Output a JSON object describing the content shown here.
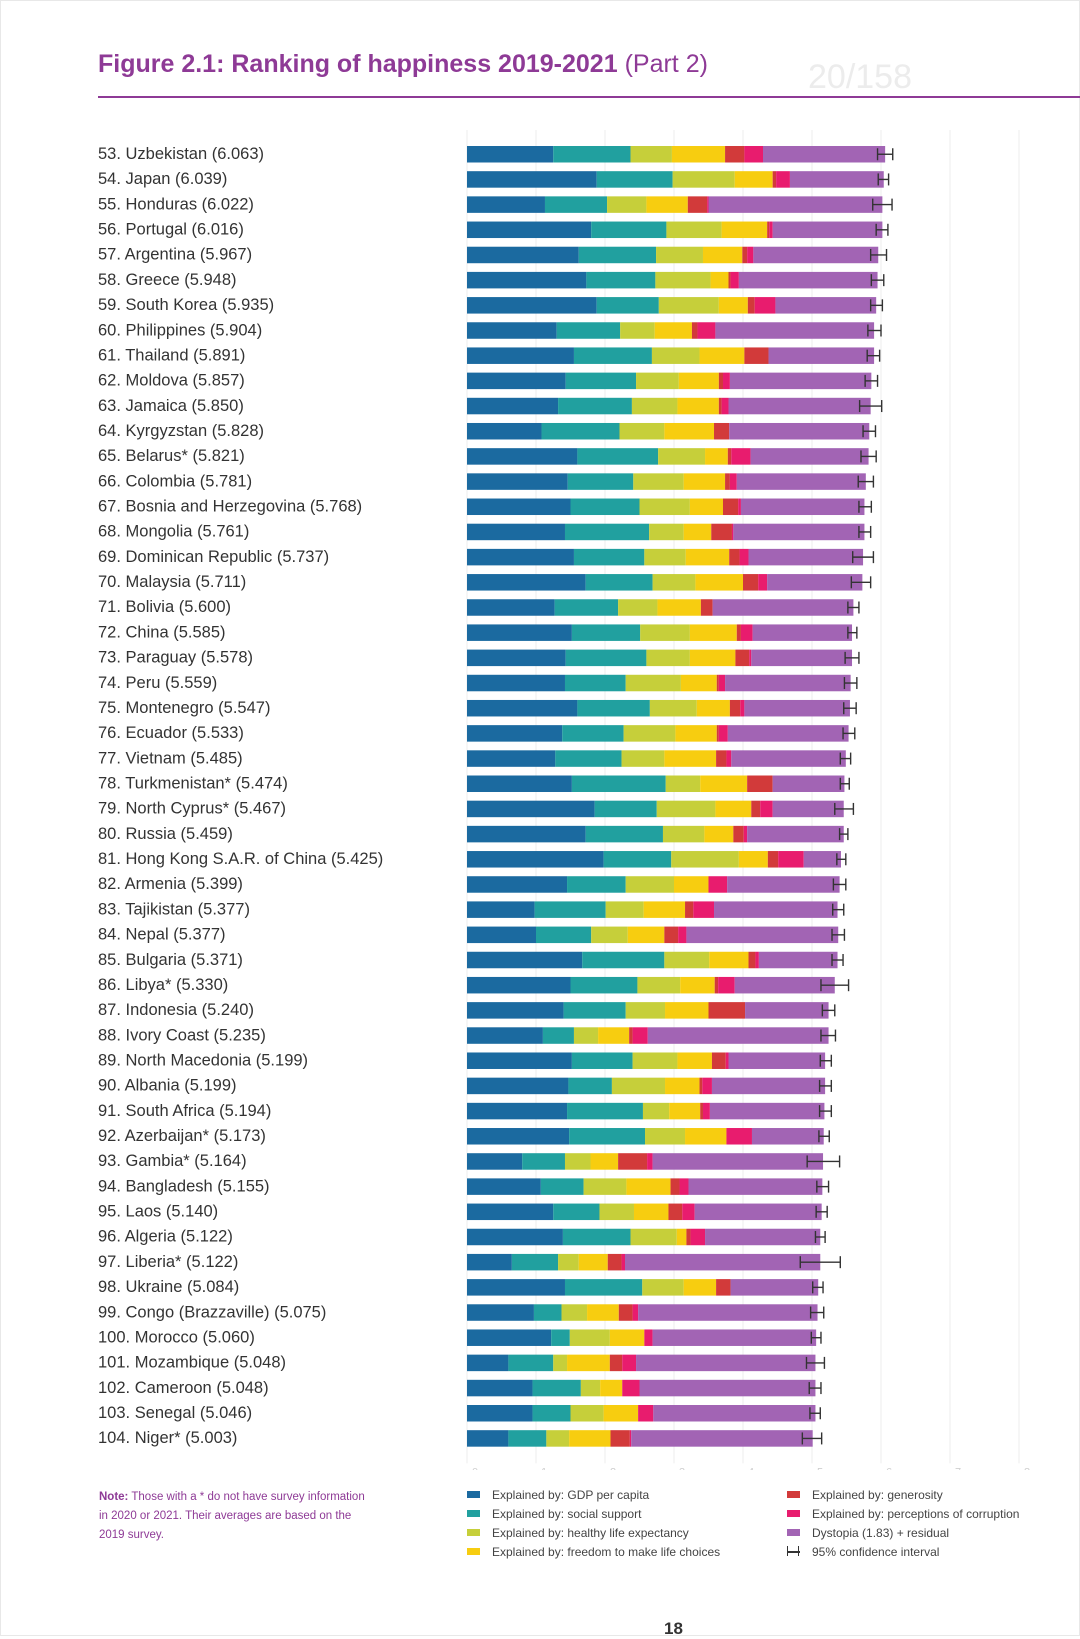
{
  "title_main": "Figure 2.1: Ranking of happiness 2019-2021",
  "title_part": "(Part 2)",
  "watermark": "20/158",
  "note_label": "Note:",
  "note_text": "Those with a * do not have survey information in 2020 or 2021. Their averages are based on the 2019 survey.",
  "page_number": "18",
  "colors": {
    "gdp": "#1b6aa0",
    "social": "#21a09f",
    "health": "#c6cf3a",
    "freedom": "#f7cd10",
    "generosity": "#d23a3a",
    "corruption": "#e81c6e",
    "dystopia": "#a264b4",
    "ci": "#333333",
    "grid": "#ececec"
  },
  "legend": [
    {
      "key": "gdp",
      "label": "Explained by: GDP per capita"
    },
    {
      "key": "social",
      "label": "Explained by: social support"
    },
    {
      "key": "health",
      "label": "Explained by: healthy life expectancy"
    },
    {
      "key": "freedom",
      "label": "Explained by: freedom to make life choices"
    },
    {
      "key": "generosity",
      "label": "Explained by: generosity"
    },
    {
      "key": "corruption",
      "label": "Explained by: perceptions of corruption"
    },
    {
      "key": "dystopia",
      "label": "Dystopia (1.83) + residual"
    },
    {
      "key": "ci",
      "label": "95% confidence interval"
    }
  ],
  "chart_data": {
    "type": "bar",
    "orientation": "horizontal",
    "stacked": true,
    "xlim": [
      0,
      8
    ],
    "xticks": [
      "0",
      "1",
      "2",
      "3",
      "4",
      "5",
      "6",
      "7",
      "8"
    ],
    "grid": true,
    "legend_position": "bottom",
    "segment_order": [
      "gdp",
      "social",
      "health",
      "freedom",
      "generosity",
      "corruption",
      "dystopia"
    ],
    "rows": [
      {
        "label": "53.  Uzbekistan (6.063)",
        "score": 6.063,
        "segments": [
          1.25,
          1.12,
          0.6,
          0.77,
          0.28,
          0.27,
          1.77
        ],
        "ci": [
          5.95,
          6.17
        ]
      },
      {
        "label": "54.  Japan (6.039)",
        "score": 6.039,
        "segments": [
          1.88,
          1.1,
          0.9,
          0.55,
          0.05,
          0.2,
          1.36
        ],
        "ci": [
          5.96,
          6.11
        ]
      },
      {
        "label": "55.  Honduras (6.022)",
        "score": 6.022,
        "segments": [
          1.13,
          0.9,
          0.57,
          0.6,
          0.28,
          0.02,
          2.52
        ],
        "ci": [
          5.88,
          6.16
        ]
      },
      {
        "label": "56.  Portugal (6.016)",
        "score": 6.016,
        "segments": [
          1.8,
          1.09,
          0.8,
          0.66,
          0.03,
          0.05,
          1.59
        ],
        "ci": [
          5.93,
          6.1
        ]
      },
      {
        "label": "57.  Argentina (5.967)",
        "score": 5.967,
        "segments": [
          1.62,
          1.12,
          0.68,
          0.57,
          0.07,
          0.09,
          1.81
        ],
        "ci": [
          5.85,
          6.08
        ]
      },
      {
        "label": "58.  Greece (5.948)",
        "score": 5.948,
        "segments": [
          1.73,
          1.0,
          0.8,
          0.26,
          0.03,
          0.12,
          2.01
        ],
        "ci": [
          5.86,
          6.04
        ]
      },
      {
        "label": "59.  South Korea (5.935)",
        "score": 5.935,
        "segments": [
          1.88,
          0.9,
          0.87,
          0.42,
          0.1,
          0.3,
          1.46
        ],
        "ci": [
          5.85,
          6.02
        ]
      },
      {
        "label": "60.  Philippines (5.904)",
        "score": 5.904,
        "segments": [
          1.3,
          0.92,
          0.5,
          0.54,
          0.08,
          0.26,
          2.3
        ],
        "ci": [
          5.81,
          6.0
        ]
      },
      {
        "label": "61.  Thailand (5.891)",
        "score": 5.891,
        "segments": [
          1.55,
          1.13,
          0.69,
          0.65,
          0.35,
          0.0,
          1.53
        ],
        "ci": [
          5.8,
          5.98
        ]
      },
      {
        "label": "62.  Moldova (5.857)",
        "score": 5.857,
        "segments": [
          1.43,
          1.02,
          0.62,
          0.58,
          0.06,
          0.1,
          2.05
        ],
        "ci": [
          5.77,
          5.95
        ]
      },
      {
        "label": "63.  Jamaica (5.850)",
        "score": 5.85,
        "segments": [
          1.32,
          1.07,
          0.66,
          0.6,
          0.04,
          0.1,
          2.06
        ],
        "ci": [
          5.69,
          6.01
        ]
      },
      {
        "label": "64.  Kyrgyzstan (5.828)",
        "score": 5.828,
        "segments": [
          1.08,
          1.13,
          0.65,
          0.72,
          0.22,
          0.0,
          2.03
        ],
        "ci": [
          5.74,
          5.92
        ]
      },
      {
        "label": "65.  Belarus* (5.821)",
        "score": 5.821,
        "segments": [
          1.6,
          1.17,
          0.68,
          0.33,
          0.05,
          0.28,
          1.71
        ],
        "ci": [
          5.71,
          5.93
        ]
      },
      {
        "label": "66.  Colombia (5.781)",
        "score": 5.781,
        "segments": [
          1.46,
          0.95,
          0.73,
          0.6,
          0.07,
          0.1,
          1.87
        ],
        "ci": [
          5.67,
          5.89
        ]
      },
      {
        "label": "67.  Bosnia and Herzegovina (5.768)",
        "score": 5.768,
        "segments": [
          1.5,
          1.0,
          0.73,
          0.48,
          0.22,
          0.04,
          1.79
        ],
        "ci": [
          5.68,
          5.86
        ]
      },
      {
        "label": "68.  Mongolia (5.761)",
        "score": 5.761,
        "segments": [
          1.42,
          1.22,
          0.5,
          0.4,
          0.3,
          0.02,
          1.9
        ],
        "ci": [
          5.68,
          5.85
        ]
      },
      {
        "label": "69.  Dominican Republic (5.737)",
        "score": 5.737,
        "segments": [
          1.55,
          1.02,
          0.6,
          0.63,
          0.15,
          0.13,
          1.66
        ],
        "ci": [
          5.59,
          5.89
        ]
      },
      {
        "label": "70.  Malaysia (5.711)",
        "score": 5.711,
        "segments": [
          1.72,
          0.97,
          0.62,
          0.69,
          0.22,
          0.13,
          1.38
        ],
        "ci": [
          5.57,
          5.85
        ]
      },
      {
        "label": "71.  Bolivia (5.600)",
        "score": 5.6,
        "segments": [
          1.27,
          0.92,
          0.57,
          0.63,
          0.17,
          0.0,
          2.04
        ],
        "ci": [
          5.52,
          5.68
        ]
      },
      {
        "label": "72.  China (5.585)",
        "score": 5.585,
        "segments": [
          1.52,
          0.99,
          0.72,
          0.68,
          0.06,
          0.17,
          1.44
        ],
        "ci": [
          5.52,
          5.65
        ]
      },
      {
        "label": "73.  Paraguay (5.578)",
        "score": 5.578,
        "segments": [
          1.43,
          1.17,
          0.63,
          0.66,
          0.2,
          0.03,
          1.46
        ],
        "ci": [
          5.48,
          5.68
        ]
      },
      {
        "label": "74.  Peru (5.559)",
        "score": 5.559,
        "segments": [
          1.42,
          0.88,
          0.8,
          0.52,
          0.03,
          0.09,
          1.82
        ],
        "ci": [
          5.47,
          5.65
        ]
      },
      {
        "label": "75.  Montenegro (5.547)",
        "score": 5.547,
        "segments": [
          1.6,
          1.05,
          0.68,
          0.48,
          0.15,
          0.06,
          1.53
        ],
        "ci": [
          5.46,
          5.64
        ]
      },
      {
        "label": "76.  Ecuador (5.533)",
        "score": 5.533,
        "segments": [
          1.38,
          0.89,
          0.75,
          0.6,
          0.03,
          0.13,
          1.75
        ],
        "ci": [
          5.45,
          5.62
        ]
      },
      {
        "label": "77.  Vietnam (5.485)",
        "score": 5.485,
        "segments": [
          1.28,
          0.96,
          0.62,
          0.75,
          0.15,
          0.07,
          1.66
        ],
        "ci": [
          5.41,
          5.56
        ]
      },
      {
        "label": "78.  Turkmenistan* (5.474)",
        "score": 5.474,
        "segments": [
          1.52,
          1.36,
          0.5,
          0.68,
          0.37,
          0.0,
          1.04
        ],
        "ci": [
          5.41,
          5.54
        ]
      },
      {
        "label": "79.  North Cyprus* (5.467)",
        "score": 5.467,
        "segments": [
          1.85,
          0.9,
          0.85,
          0.52,
          0.13,
          0.18,
          1.03
        ],
        "ci": [
          5.33,
          5.6
        ]
      },
      {
        "label": "80.  Russia (5.459)",
        "score": 5.459,
        "segments": [
          1.72,
          1.12,
          0.6,
          0.42,
          0.15,
          0.05,
          1.4
        ],
        "ci": [
          5.4,
          5.52
        ]
      },
      {
        "label": "81.  Hong Kong S.A.R. of China (5.425)",
        "score": 5.425,
        "segments": [
          1.98,
          0.98,
          0.98,
          0.42,
          0.15,
          0.37,
          0.54
        ],
        "ci": [
          5.36,
          5.49
        ]
      },
      {
        "label": "82.  Armenia (5.399)",
        "score": 5.399,
        "segments": [
          1.45,
          0.85,
          0.7,
          0.5,
          0.0,
          0.27,
          1.63
        ],
        "ci": [
          5.31,
          5.49
        ]
      },
      {
        "label": "83.  Tajikistan (5.377)",
        "score": 5.377,
        "segments": [
          0.98,
          1.03,
          0.55,
          0.6,
          0.12,
          0.3,
          1.79
        ],
        "ci": [
          5.3,
          5.46
        ]
      },
      {
        "label": "84.  Nepal (5.377)",
        "score": 5.377,
        "segments": [
          1.0,
          0.8,
          0.53,
          0.53,
          0.2,
          0.12,
          2.2
        ],
        "ci": [
          5.29,
          5.47
        ]
      },
      {
        "label": "85.  Bulgaria (5.371)",
        "score": 5.371,
        "segments": [
          1.67,
          1.19,
          0.65,
          0.57,
          0.1,
          0.05,
          1.14
        ],
        "ci": [
          5.29,
          5.45
        ]
      },
      {
        "label": "86.  Libya* (5.330)",
        "score": 5.33,
        "segments": [
          1.5,
          0.97,
          0.62,
          0.5,
          0.05,
          0.24,
          1.45
        ],
        "ci": [
          5.13,
          5.53
        ]
      },
      {
        "label": "87.  Indonesia (5.240)",
        "score": 5.24,
        "segments": [
          1.4,
          0.9,
          0.57,
          0.63,
          0.53,
          0.0,
          1.21
        ],
        "ci": [
          5.15,
          5.33
        ]
      },
      {
        "label": "88.  Ivory Coast (5.235)",
        "score": 5.235,
        "segments": [
          1.1,
          0.45,
          0.35,
          0.45,
          0.05,
          0.22,
          2.62
        ],
        "ci": [
          5.13,
          5.34
        ]
      },
      {
        "label": "89.  North Macedonia (5.199)",
        "score": 5.199,
        "segments": [
          1.52,
          0.88,
          0.65,
          0.5,
          0.2,
          0.04,
          1.4
        ],
        "ci": [
          5.12,
          5.28
        ]
      },
      {
        "label": "90.  Albania (5.199)",
        "score": 5.199,
        "segments": [
          1.47,
          0.63,
          0.77,
          0.5,
          0.04,
          0.14,
          1.64
        ],
        "ci": [
          5.11,
          5.28
        ]
      },
      {
        "label": "91.  South Africa (5.194)",
        "score": 5.194,
        "segments": [
          1.45,
          1.1,
          0.38,
          0.45,
          0.04,
          0.1,
          1.66
        ],
        "ci": [
          5.11,
          5.28
        ]
      },
      {
        "label": "92.  Azerbaijan* (5.173)",
        "score": 5.173,
        "segments": [
          1.48,
          1.1,
          0.58,
          0.6,
          0.0,
          0.37,
          1.04
        ],
        "ci": [
          5.1,
          5.25
        ]
      },
      {
        "label": "93.  Gambia* (5.164)",
        "score": 5.164,
        "segments": [
          0.8,
          0.62,
          0.37,
          0.4,
          0.42,
          0.08,
          2.47
        ],
        "ci": [
          4.93,
          5.4
        ]
      },
      {
        "label": "94.  Bangladesh (5.155)",
        "score": 5.155,
        "segments": [
          1.07,
          0.62,
          0.62,
          0.64,
          0.13,
          0.13,
          1.94
        ],
        "ci": [
          5.07,
          5.24
        ]
      },
      {
        "label": "95.  Laos (5.140)",
        "score": 5.14,
        "segments": [
          1.25,
          0.67,
          0.5,
          0.5,
          0.2,
          0.18,
          1.84
        ],
        "ci": [
          5.06,
          5.22
        ]
      },
      {
        "label": "96.  Algeria (5.122)",
        "score": 5.122,
        "segments": [
          1.39,
          0.98,
          0.67,
          0.14,
          0.06,
          0.21,
          1.67
        ],
        "ci": [
          5.05,
          5.19
        ]
      },
      {
        "label": "97.  Liberia* (5.122)",
        "score": 5.122,
        "segments": [
          0.65,
          0.67,
          0.3,
          0.42,
          0.2,
          0.05,
          2.83
        ],
        "ci": [
          4.83,
          5.41
        ]
      },
      {
        "label": "98.  Ukraine (5.084)",
        "score": 5.084,
        "segments": [
          1.42,
          1.12,
          0.6,
          0.47,
          0.21,
          0.0,
          1.27
        ],
        "ci": [
          5.01,
          5.16
        ]
      },
      {
        "label": "99.  Congo (Brazzaville) (5.075)",
        "score": 5.075,
        "segments": [
          0.97,
          0.4,
          0.37,
          0.46,
          0.2,
          0.08,
          2.6
        ],
        "ci": [
          4.98,
          5.17
        ]
      },
      {
        "label": "100. Morocco (5.060)",
        "score": 5.06,
        "segments": [
          1.22,
          0.27,
          0.58,
          0.5,
          0.0,
          0.12,
          2.37
        ],
        "ci": [
          4.99,
          5.13
        ]
      },
      {
        "label": "101. Mozambique (5.048)",
        "score": 5.048,
        "segments": [
          0.6,
          0.65,
          0.2,
          0.62,
          0.18,
          0.2,
          2.6
        ],
        "ci": [
          4.92,
          5.18
        ]
      },
      {
        "label": "102. Cameroon (5.048)",
        "score": 5.048,
        "segments": [
          0.95,
          0.7,
          0.28,
          0.32,
          0.0,
          0.25,
          2.55
        ],
        "ci": [
          4.96,
          5.13
        ]
      },
      {
        "label": "103. Senegal (5.046)",
        "score": 5.046,
        "segments": [
          0.95,
          0.55,
          0.48,
          0.5,
          0.0,
          0.22,
          2.35
        ],
        "ci": [
          4.97,
          5.12
        ]
      },
      {
        "label": "104. Niger* (5.003)",
        "score": 5.003,
        "segments": [
          0.6,
          0.55,
          0.33,
          0.6,
          0.28,
          0.02,
          2.63
        ],
        "ci": [
          4.86,
          5.14
        ]
      }
    ]
  }
}
